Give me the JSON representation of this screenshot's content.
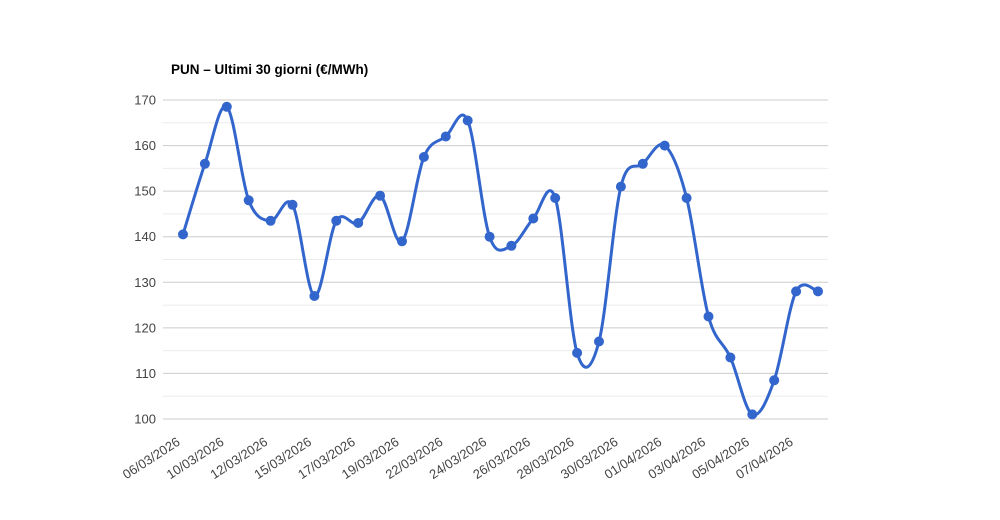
{
  "chart_data": {
    "type": "line",
    "title": "PUN – Ultimi 30 giorni (€/MWh)",
    "xlabel": "",
    "ylabel": "",
    "ylim": [
      100,
      170
    ],
    "y_major_ticks": [
      100,
      110,
      120,
      130,
      140,
      150,
      160,
      170
    ],
    "y_minor_step": 5,
    "grid": "horizontal-only",
    "legend_position": "none",
    "smooth_curve": true,
    "num_points": 30,
    "values": [
      140.5,
      156,
      168.5,
      148,
      143.5,
      147,
      127,
      143.5,
      143,
      149,
      139,
      157.5,
      162,
      165.5,
      140,
      138,
      144,
      148.5,
      114.5,
      117,
      151,
      156,
      160,
      148.5,
      122.5,
      113.5,
      101,
      108.5,
      128,
      128
    ],
    "x_tick_labels": [
      "06/03/2026",
      "10/03/2026",
      "12/03/2026",
      "15/03/2026",
      "17/03/2026",
      "19/03/2026",
      "22/03/2026",
      "24/03/2026",
      "26/03/2026",
      "28/03/2026",
      "30/03/2026",
      "01/04/2026",
      "03/04/2026",
      "05/04/2026",
      "07/04/2026"
    ],
    "x_tick_point_indices": [
      0,
      2,
      4,
      6,
      8,
      10,
      12,
      14,
      16,
      18,
      20,
      22,
      24,
      26,
      28
    ],
    "x_tick_rotation_deg": -33,
    "colors": {
      "series_line": "#3366cc",
      "point_fill": "#3366cc",
      "grid_major": "#cccccc",
      "grid_minor": "#ebebeb",
      "axis_label": "#444444",
      "title": "#000000",
      "background": "#ffffff"
    }
  }
}
